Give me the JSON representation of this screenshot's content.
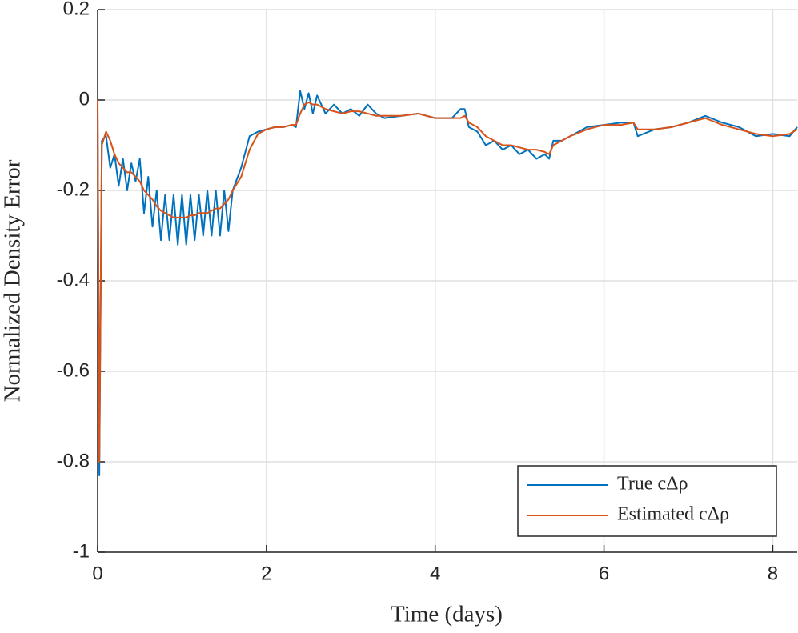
{
  "chart_data": {
    "type": "line",
    "x_label": "Time (days)",
    "y_label": "Normalized Density Error",
    "x": [
      0,
      0.02,
      0.05,
      0.1,
      0.15,
      0.2,
      0.25,
      0.3,
      0.35,
      0.4,
      0.45,
      0.5,
      0.55,
      0.6,
      0.65,
      0.7,
      0.75,
      0.8,
      0.85,
      0.9,
      0.95,
      1,
      1.05,
      1.1,
      1.15,
      1.2,
      1.25,
      1.3,
      1.35,
      1.4,
      1.45,
      1.5,
      1.55,
      1.6,
      1.7,
      1.8,
      1.9,
      2,
      2.1,
      2.2,
      2.3,
      2.35,
      2.4,
      2.45,
      2.5,
      2.55,
      2.6,
      2.7,
      2.8,
      2.9,
      3,
      3.1,
      3.2,
      3.3,
      3.4,
      3.6,
      3.8,
      4,
      4.2,
      4.3,
      4.35,
      4.4,
      4.5,
      4.6,
      4.7,
      4.8,
      4.9,
      5,
      5.1,
      5.2,
      5.3,
      5.35,
      5.4,
      5.5,
      5.6,
      5.8,
      6,
      6.2,
      6.35,
      6.4,
      6.6,
      6.8,
      7,
      7.2,
      7.4,
      7.6,
      7.8,
      8,
      8.2,
      8.29
    ],
    "series": [
      {
        "name": "True cΔρ",
        "color": "#0072bd",
        "values": [
          0,
          -0.83,
          -0.09,
          -0.08,
          -0.15,
          -0.12,
          -0.19,
          -0.13,
          -0.2,
          -0.14,
          -0.18,
          -0.13,
          -0.25,
          -0.17,
          -0.28,
          -0.2,
          -0.31,
          -0.21,
          -0.31,
          -0.21,
          -0.32,
          -0.21,
          -0.32,
          -0.21,
          -0.31,
          -0.21,
          -0.3,
          -0.2,
          -0.3,
          -0.2,
          -0.3,
          -0.2,
          -0.29,
          -0.2,
          -0.15,
          -0.08,
          -0.07,
          -0.065,
          -0.06,
          -0.06,
          -0.055,
          -0.06,
          0.02,
          -0.02,
          0.015,
          -0.03,
          0.01,
          -0.03,
          -0.01,
          -0.03,
          -0.02,
          -0.035,
          -0.01,
          -0.03,
          -0.04,
          -0.035,
          -0.03,
          -0.04,
          -0.04,
          -0.02,
          -0.02,
          -0.06,
          -0.07,
          -0.1,
          -0.09,
          -0.11,
          -0.1,
          -0.12,
          -0.11,
          -0.13,
          -0.12,
          -0.13,
          -0.09,
          -0.09,
          -0.08,
          -0.06,
          -0.055,
          -0.05,
          -0.05,
          -0.08,
          -0.065,
          -0.06,
          -0.05,
          -0.035,
          -0.05,
          -0.06,
          -0.08,
          -0.075,
          -0.08,
          -0.06
        ]
      },
      {
        "name": "Estimated cΔρ",
        "color": "#d95319",
        "values": [
          0,
          -0.8,
          -0.1,
          -0.07,
          -0.09,
          -0.12,
          -0.14,
          -0.15,
          -0.16,
          -0.16,
          -0.17,
          -0.18,
          -0.2,
          -0.21,
          -0.22,
          -0.235,
          -0.245,
          -0.25,
          -0.255,
          -0.26,
          -0.26,
          -0.26,
          -0.26,
          -0.255,
          -0.255,
          -0.25,
          -0.25,
          -0.25,
          -0.245,
          -0.24,
          -0.24,
          -0.23,
          -0.22,
          -0.2,
          -0.17,
          -0.11,
          -0.075,
          -0.065,
          -0.06,
          -0.06,
          -0.055,
          -0.055,
          -0.03,
          -0.01,
          -0.005,
          -0.01,
          -0.01,
          -0.02,
          -0.025,
          -0.03,
          -0.025,
          -0.025,
          -0.03,
          -0.035,
          -0.035,
          -0.035,
          -0.03,
          -0.04,
          -0.04,
          -0.04,
          -0.035,
          -0.05,
          -0.06,
          -0.08,
          -0.09,
          -0.1,
          -0.1,
          -0.105,
          -0.11,
          -0.11,
          -0.115,
          -0.12,
          -0.1,
          -0.09,
          -0.08,
          -0.065,
          -0.055,
          -0.055,
          -0.05,
          -0.065,
          -0.065,
          -0.06,
          -0.05,
          -0.04,
          -0.055,
          -0.065,
          -0.075,
          -0.08,
          -0.075,
          -0.065
        ]
      }
    ],
    "xlim": [
      0,
      8.29
    ],
    "ylim": [
      -1,
      0.2
    ],
    "xticks": [
      0,
      2,
      4,
      6,
      8
    ],
    "yticks": [
      -1,
      -0.8,
      -0.6,
      -0.4,
      -0.2,
      0,
      0.2
    ],
    "grid": true,
    "legend": "lower right"
  }
}
